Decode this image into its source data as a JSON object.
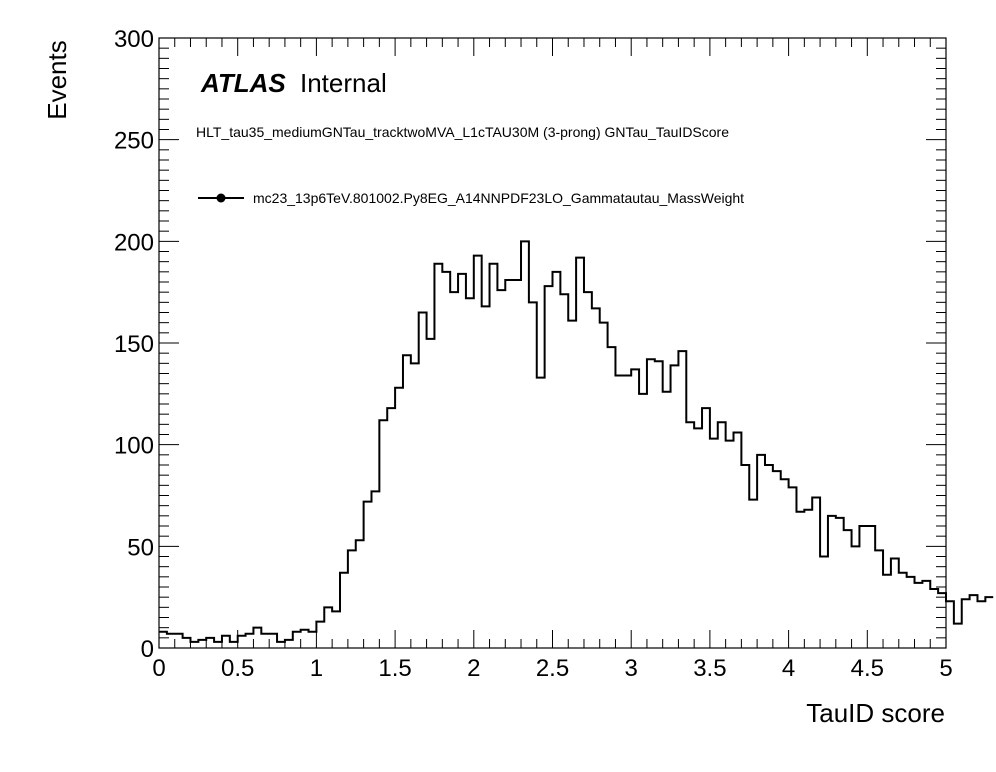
{
  "chart_data": {
    "type": "histogram",
    "title": "",
    "xlabel": "TauID score",
    "ylabel": "Events",
    "xlim": [
      0,
      5
    ],
    "ylim": [
      0,
      300
    ],
    "x_ticks": [
      "0",
      "0.5",
      "1",
      "1.5",
      "2",
      "2.5",
      "3",
      "3.5",
      "4",
      "4.5",
      "5"
    ],
    "y_ticks": [
      "0",
      "50",
      "100",
      "150",
      "200",
      "250",
      "300"
    ],
    "grid": false,
    "annotations": {
      "experiment": "ATLAS",
      "status": "Internal",
      "selection": "HLT_tau35_mediumGNTau_tracktwoMVA_L1cTAU30M (3-prong) GNTau_TauIDScore"
    },
    "legend_position": "top-left",
    "bin_width": 0.05,
    "series": [
      {
        "name": "mc23_13p6TeV.801002.Py8EG_A14NNPDF23LO_Gammatautau_MassWeight",
        "color": "#000000",
        "bin_edges_start": 0,
        "values": [
          8,
          7,
          7,
          5,
          3,
          4,
          5,
          3,
          6,
          3,
          6,
          7,
          10,
          7,
          7,
          3,
          4,
          8,
          9,
          8,
          13,
          20,
          18,
          37,
          48,
          53,
          72,
          77,
          112,
          118,
          128,
          144,
          140,
          165,
          152,
          189,
          185,
          175,
          184,
          172,
          193,
          168,
          189,
          176,
          181,
          181,
          200,
          170,
          133,
          178,
          185,
          174,
          161,
          192,
          175,
          167,
          160,
          148,
          134,
          134,
          137,
          125,
          142,
          141,
          126,
          139,
          146,
          111,
          108,
          118,
          103,
          111,
          102,
          106,
          90,
          73,
          95,
          90,
          87,
          83,
          79,
          67,
          68,
          74,
          45,
          65,
          64,
          58,
          50,
          60,
          60,
          48,
          36,
          44,
          37,
          35,
          32,
          33,
          29,
          27,
          23,
          12,
          24,
          26,
          23,
          25
        ]
      }
    ]
  }
}
